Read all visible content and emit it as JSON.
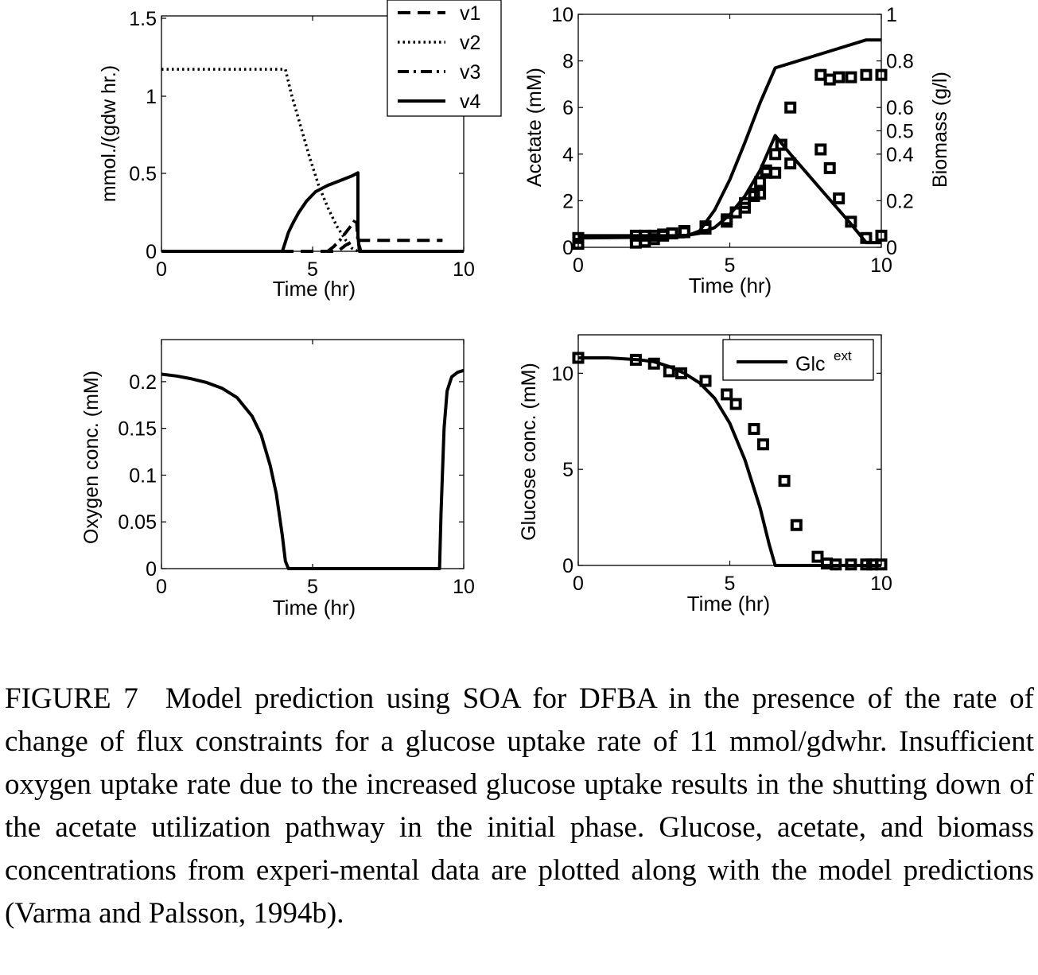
{
  "caption": {
    "label": "FIGURE 7",
    "text": "Model prediction using SOA for DFBA in the presence of the rate of change of flux constraints for a glucose uptake rate of 11 mmol/gdwhr. Insufficient oxygen uptake rate due to the increased glucose uptake results in the shutting down of the acetate utilization pathway in the initial phase. Glucose, acetate, and biomass concentrations from experi-mental data are plotted along with the model predictions (Varma and Palsson, 1994b)."
  },
  "chart_data": [
    {
      "id": "fluxes",
      "type": "line",
      "xlabel": "Time (hr)",
      "ylabel": "mmol./(gdw hr.)",
      "xlim": [
        0,
        10
      ],
      "ylim": [
        0,
        1.5
      ],
      "xticks": [
        "0",
        "5",
        "10"
      ],
      "yticks": [
        "0",
        "0.5",
        "1",
        "1.5"
      ],
      "legend_position": "top-right",
      "series": [
        {
          "name": "v1",
          "style": "dashed",
          "x": [
            0,
            5.8,
            5.9,
            6.0,
            6.1,
            6.2,
            6.3,
            6.4,
            6.5,
            6.6,
            7.0,
            8.0,
            9.0,
            9.3
          ],
          "y": [
            0,
            0,
            0.01,
            0.025,
            0.04,
            0.05,
            0.06,
            0.065,
            0.07,
            0.07,
            0.07,
            0.07,
            0.07,
            0.07
          ]
        },
        {
          "name": "v2",
          "style": "dotted",
          "x": [
            0,
            1,
            2,
            3,
            4.1,
            4.3,
            4.6,
            4.9,
            5.2,
            5.5,
            5.8,
            6.1,
            6.3,
            6.5
          ],
          "y": [
            1.16,
            1.16,
            1.16,
            1.16,
            1.16,
            1.0,
            0.8,
            0.6,
            0.42,
            0.28,
            0.16,
            0.07,
            0.02,
            0
          ]
        },
        {
          "name": "v3",
          "style": "dash-dot",
          "x": [
            5.5,
            5.7,
            5.9,
            6.1,
            6.3,
            6.45,
            6.5,
            6.6
          ],
          "y": [
            0,
            0.03,
            0.07,
            0.12,
            0.17,
            0.21,
            0.06,
            0
          ]
        },
        {
          "name": "v4",
          "style": "solid",
          "x": [
            0,
            4.0,
            4.1,
            4.2,
            4.35,
            4.55,
            4.8,
            5.1,
            5.5,
            5.9,
            6.3,
            6.5,
            6.5,
            6.55,
            10
          ],
          "y": [
            0,
            0,
            0.06,
            0.12,
            0.18,
            0.25,
            0.32,
            0.38,
            0.42,
            0.45,
            0.48,
            0.5,
            0.1,
            0,
            0
          ]
        }
      ]
    },
    {
      "id": "acetate-biomass",
      "type": "line",
      "xlabel": "Time (hr)",
      "ylabel": "Acetate (mM)",
      "ylabel_right": "Biomass (g/l)",
      "xlim": [
        0,
        10
      ],
      "ylim": [
        0,
        10
      ],
      "ylim_right": [
        0,
        1
      ],
      "xticks": [
        "0",
        "5",
        "10"
      ],
      "yticks": [
        "0",
        "2",
        "4",
        "6",
        "8",
        "10"
      ],
      "yticks_right": [
        "0",
        "0.2",
        "0.4",
        "0.5",
        "0.6",
        "0.8",
        "1"
      ],
      "series": [
        {
          "name": "",
          "axis": "left",
          "style": "solid",
          "x": [
            0,
            3.5,
            4.0,
            4.5,
            5.0,
            5.5,
            6.0,
            6.5,
            7.0,
            8.0,
            9.0,
            9.5,
            10
          ],
          "y": [
            0.5,
            0.5,
            0.6,
            0.85,
            1.4,
            2.2,
            3.3,
            4.8,
            4.0,
            2.5,
            1.0,
            0.2,
            0.2
          ]
        },
        {
          "name": "",
          "axis": "right",
          "style": "solid",
          "x": [
            0,
            3.5,
            4.0,
            4.5,
            5.0,
            5.5,
            6.0,
            6.5,
            7.5,
            8.5,
            9.5,
            10
          ],
          "y": [
            0.04,
            0.045,
            0.07,
            0.16,
            0.29,
            0.45,
            0.62,
            0.77,
            0.81,
            0.85,
            0.89,
            0.89
          ]
        },
        {
          "name": "",
          "axis": "left",
          "style": "markers",
          "x": [
            0,
            1.9,
            2.2,
            2.5,
            2.8,
            3.1,
            3.5,
            4.2,
            4.9,
            5.2,
            5.5,
            5.8,
            6.0,
            6.2,
            6.5,
            6.7,
            7.0,
            8.0,
            8.3,
            8.6,
            9.0,
            9.5,
            10
          ],
          "y": [
            0.4,
            0.5,
            0.5,
            0.5,
            0.55,
            0.6,
            0.65,
            0.8,
            1.1,
            1.5,
            1.7,
            2.2,
            2.3,
            3.2,
            3.2,
            4.4,
            3.6,
            4.2,
            3.4,
            2.1,
            1.1,
            0.4,
            0.5
          ]
        },
        {
          "name": "",
          "axis": "right",
          "style": "markers",
          "x": [
            0,
            1.9,
            2.2,
            2.5,
            2.8,
            3.1,
            3.5,
            4.2,
            4.9,
            5.2,
            5.5,
            5.8,
            6.0,
            6.2,
            6.5,
            6.7,
            7.0,
            8.0,
            8.3,
            8.6,
            9.0,
            9.5,
            10
          ],
          "y": [
            0.015,
            0.02,
            0.025,
            0.035,
            0.05,
            0.06,
            0.07,
            0.09,
            0.12,
            0.15,
            0.19,
            0.23,
            0.28,
            0.33,
            0.4,
            0.44,
            0.6,
            0.74,
            0.72,
            0.73,
            0.73,
            0.74,
            0.74
          ]
        }
      ]
    },
    {
      "id": "oxygen",
      "type": "line",
      "xlabel": "Time (hr)",
      "ylabel": "Oxygen conc. (mM)",
      "xlim": [
        0,
        10
      ],
      "ylim": [
        0,
        0.25
      ],
      "xticks": [
        "0",
        "5",
        "10"
      ],
      "yticks": [
        "0",
        "0.05",
        "0.1",
        "0.15",
        "0.2"
      ],
      "series": [
        {
          "name": "",
          "style": "solid",
          "x": [
            0,
            0.5,
            1.0,
            1.5,
            2.0,
            2.5,
            3.0,
            3.3,
            3.6,
            3.8,
            4.0,
            4.1,
            4.2,
            9.2,
            9.25,
            9.35,
            9.45,
            9.6,
            9.8,
            10
          ],
          "y": [
            0.208,
            0.206,
            0.203,
            0.199,
            0.193,
            0.183,
            0.163,
            0.143,
            0.11,
            0.08,
            0.035,
            0.008,
            0,
            0,
            0.06,
            0.15,
            0.19,
            0.205,
            0.21,
            0.212
          ]
        }
      ]
    },
    {
      "id": "glucose",
      "type": "line",
      "xlabel": "Time (hr)",
      "ylabel": "Glucose conc. (mM)",
      "xlim": [
        0,
        10
      ],
      "ylim": [
        0,
        12
      ],
      "xticks": [
        "0",
        "5",
        "10"
      ],
      "yticks": [
        "0",
        "5",
        "10"
      ],
      "legend_position": "top-right",
      "series": [
        {
          "name": "Glc",
          "name_sup": "ext",
          "style": "solid",
          "x": [
            0,
            1.0,
            2.0,
            2.5,
            3.0,
            3.5,
            4.0,
            4.5,
            5.0,
            5.5,
            6.0,
            6.3,
            6.5,
            10
          ],
          "y": [
            10.8,
            10.8,
            10.7,
            10.6,
            10.35,
            10.0,
            9.5,
            8.7,
            7.4,
            5.5,
            3.0,
            1.1,
            0,
            0
          ]
        },
        {
          "name": "",
          "style": "markers",
          "x": [
            0,
            1.9,
            2.5,
            3.0,
            3.4,
            4.2,
            4.9,
            5.2,
            5.8,
            6.1,
            6.8,
            7.2,
            7.9,
            8.2,
            8.5,
            9.0,
            9.5,
            9.7,
            10
          ],
          "y": [
            10.8,
            10.7,
            10.5,
            10.1,
            10.0,
            9.6,
            8.9,
            8.4,
            7.1,
            6.3,
            4.4,
            2.1,
            0.45,
            0.1,
            0.05,
            0.05,
            0.05,
            0.05,
            0.05
          ]
        }
      ]
    }
  ]
}
